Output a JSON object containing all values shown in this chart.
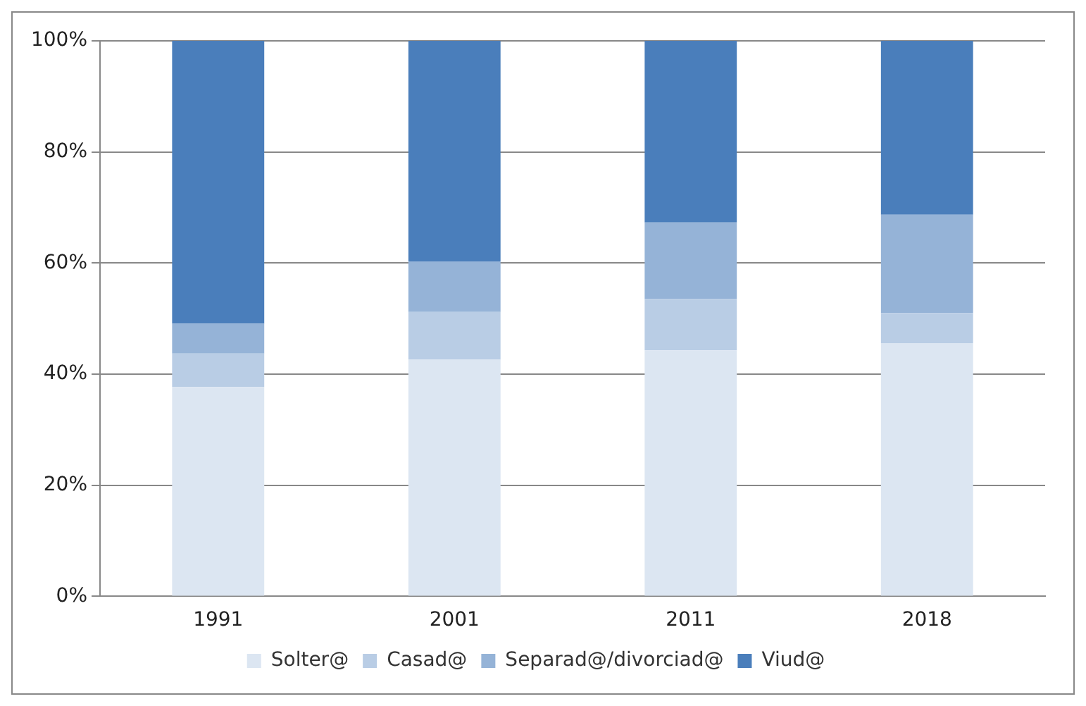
{
  "chart_data": {
    "type": "bar",
    "stacked": true,
    "categories": [
      "1991",
      "2001",
      "2011",
      "2018"
    ],
    "series": [
      {
        "name": "Solter@",
        "color": "#dce6f2",
        "values": [
          37.7,
          42.6,
          44.3,
          45.6
        ]
      },
      {
        "name": "Casad@",
        "color": "#b9cde5",
        "values": [
          6,
          8.6,
          9.2,
          5.4
        ]
      },
      {
        "name": "Separad@/divorciad@",
        "color": "#95b3d7",
        "values": [
          5.4,
          9.1,
          13.8,
          17.7
        ]
      },
      {
        "name": "Viud@",
        "color": "#4a7ebb",
        "values": [
          50.9,
          39.7,
          32.7,
          31.3
        ]
      }
    ],
    "ylim": [
      0,
      100
    ],
    "yticks": [
      {
        "value": 0,
        "label": "0%"
      },
      {
        "value": 20,
        "label": "20%"
      },
      {
        "value": 40,
        "label": "40%"
      },
      {
        "value": 60,
        "label": "60%"
      },
      {
        "value": 80,
        "label": "80%"
      },
      {
        "value": 100,
        "label": "100%"
      }
    ],
    "grid": "y",
    "legend": "bottom"
  }
}
